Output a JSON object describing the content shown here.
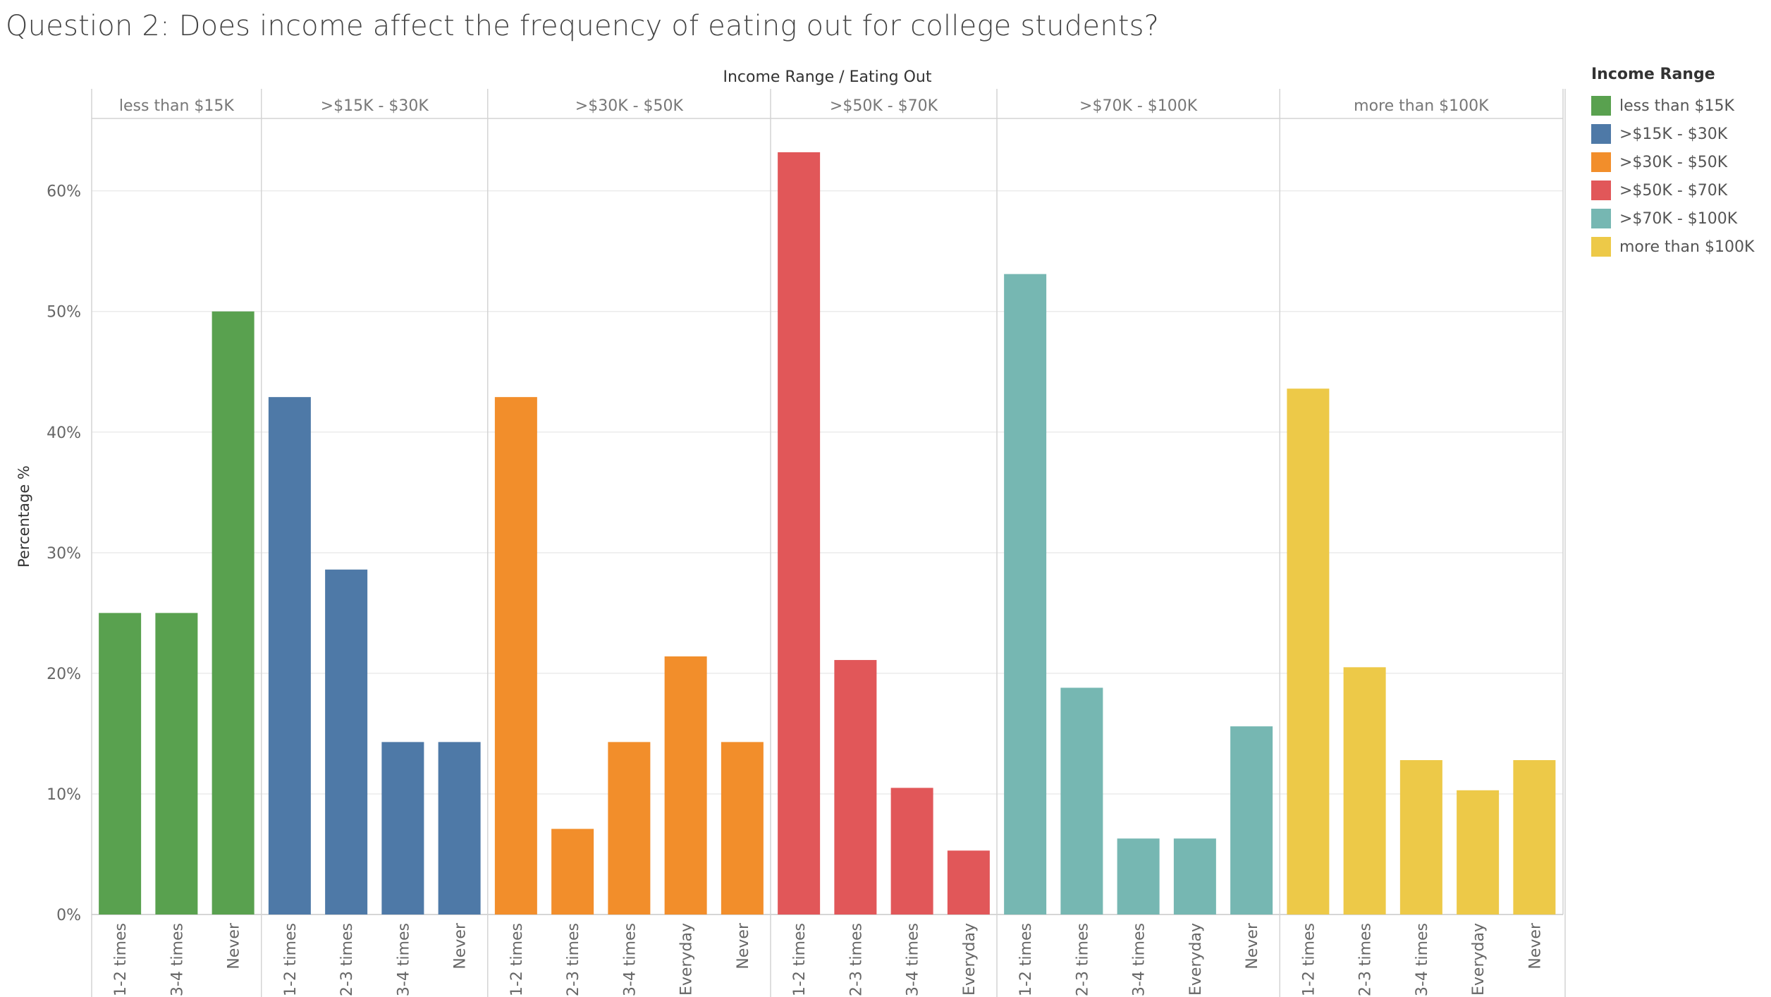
{
  "title": "Question 2: Does income affect the frequency of eating out for college students?",
  "chart_data": {
    "type": "bar",
    "title": "Question 2: Does income affect the frequency of eating out for college students?",
    "column_header": "Income Range  /  Eating Out",
    "ylabel": "Percentage %",
    "ylim": [
      0,
      66
    ],
    "yticks": [
      0,
      10,
      20,
      30,
      40,
      50,
      60
    ],
    "ytick_suffix": "%",
    "grid": true,
    "legend": {
      "title": "Income Range",
      "position": "right",
      "items": [
        {
          "label": "less than $15K",
          "color": "#59a14f"
        },
        {
          "label": ">$15K - $30K",
          "color": "#4e79a7"
        },
        {
          "label": ">$30K - $50K",
          "color": "#f28e2b"
        },
        {
          "label": ">$50K - $70K",
          "color": "#e15759"
        },
        {
          "label": ">$70K - $100K",
          "color": "#76b7b2"
        },
        {
          "label": "more than $100K",
          "color": "#edc948"
        }
      ]
    },
    "panels": [
      {
        "name": "less than $15K",
        "color": "#59a14f",
        "categories": [
          "1-2 times",
          "3-4 times",
          "Never"
        ],
        "values": [
          25.0,
          25.0,
          50.0
        ]
      },
      {
        "name": ">$15K - $30K",
        "color": "#4e79a7",
        "categories": [
          "1-2 times",
          "2-3 times",
          "3-4 times",
          "Never"
        ],
        "values": [
          42.9,
          28.6,
          14.3,
          14.3
        ]
      },
      {
        "name": ">$30K - $50K",
        "color": "#f28e2b",
        "categories": [
          "1-2 times",
          "2-3 times",
          "3-4 times",
          "Everyday",
          "Never"
        ],
        "values": [
          42.9,
          7.1,
          14.3,
          21.4,
          14.3
        ]
      },
      {
        "name": ">$50K - $70K",
        "color": "#e15759",
        "categories": [
          "1-2 times",
          "2-3 times",
          "3-4 times",
          "Everyday"
        ],
        "values": [
          63.2,
          21.1,
          10.5,
          5.3
        ]
      },
      {
        "name": ">$70K - $100K",
        "color": "#76b7b2",
        "categories": [
          "1-2 times",
          "2-3 times",
          "3-4 times",
          "Everyday",
          "Never"
        ],
        "values": [
          53.1,
          18.8,
          6.3,
          6.3,
          15.6
        ]
      },
      {
        "name": "more than $100K",
        "color": "#edc948",
        "categories": [
          "1-2 times",
          "2-3 times",
          "3-4 times",
          "Everyday",
          "Never"
        ],
        "values": [
          43.6,
          20.5,
          12.8,
          10.3,
          12.8
        ]
      }
    ]
  }
}
